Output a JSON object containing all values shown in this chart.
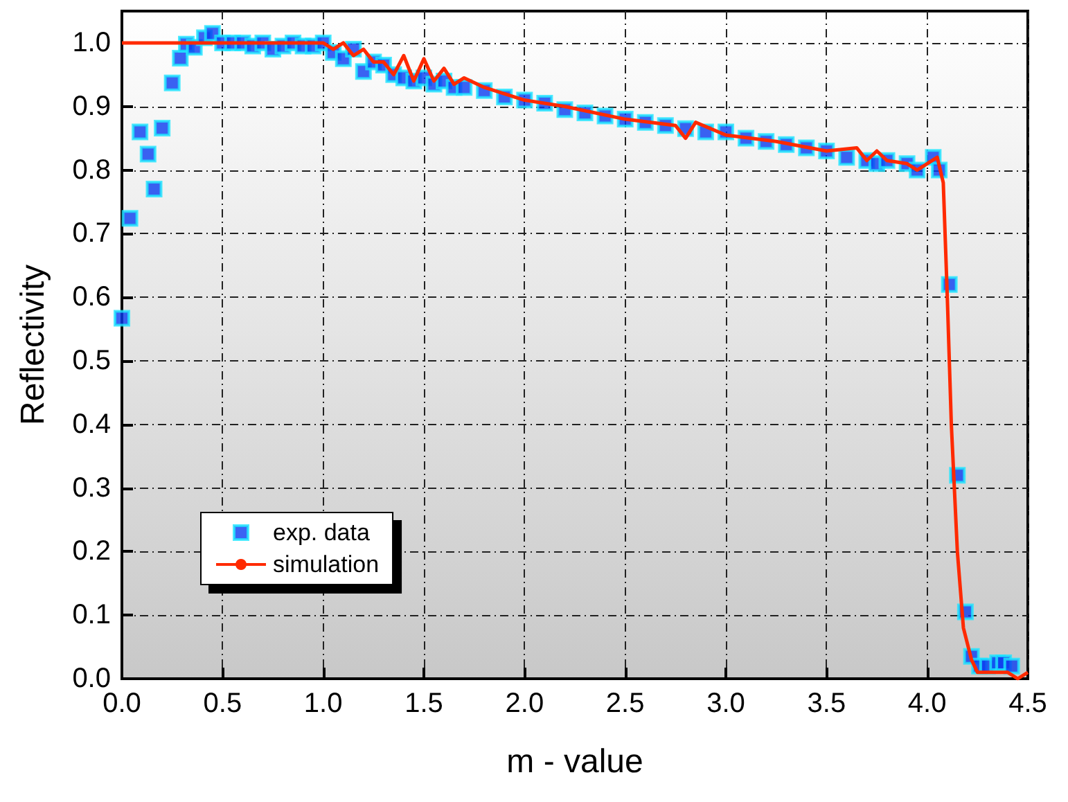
{
  "chart_data": {
    "type": "scatter",
    "xlabel": "m - value",
    "ylabel": "Reflectivity",
    "xlim": [
      0,
      4.5
    ],
    "xticks": [
      {
        "value": 0,
        "label": "0.0"
      },
      0.5,
      {
        "value": 1,
        "label": "1.0"
      },
      1.5,
      {
        "value": 2,
        "label": "2.0"
      },
      2.5,
      {
        "value": 3,
        "label": "3.0"
      },
      3.5,
      {
        "value": 4,
        "label": "4.0"
      },
      4.5
    ],
    "ylim": [
      0,
      1.05
    ],
    "yticks": [
      {
        "value": 0,
        "label": "0.0"
      },
      0.1,
      0.2,
      0.3,
      0.4,
      0.5,
      0.6,
      0.7,
      0.8,
      0.9,
      {
        "value": 1,
        "label": "1.0"
      }
    ],
    "grid": true,
    "legend": "bottom left",
    "series": [
      {
        "name": "exp. data",
        "marker": "square",
        "color": "#0a3cf0",
        "x": [
          0,
          0.04,
          0.09,
          0.13,
          0.16,
          0.2,
          0.25,
          0.29,
          0.32,
          0.36,
          0.41,
          0.45,
          0.5,
          0.55,
          0.6,
          0.65,
          0.7,
          0.75,
          0.8,
          0.85,
          0.9,
          0.95,
          1.0,
          1.05,
          1.1,
          1.15,
          1.2,
          1.25,
          1.3,
          1.35,
          1.4,
          1.45,
          1.5,
          1.55,
          1.6,
          1.65,
          1.7,
          1.8,
          1.9,
          2.0,
          2.1,
          2.2,
          2.3,
          2.4,
          2.5,
          2.6,
          2.7,
          2.8,
          2.9,
          3.0,
          3.1,
          3.2,
          3.3,
          3.4,
          3.5,
          3.6,
          3.7,
          3.75,
          3.8,
          3.9,
          3.95,
          4.03,
          4.06,
          4.11,
          4.15,
          4.19,
          4.22,
          4.26,
          4.3,
          4.35,
          4.38,
          4.42
        ],
        "values": [
          0.567,
          0.724,
          0.86,
          0.825,
          0.77,
          0.866,
          0.937,
          0.976,
          0.998,
          0.993,
          1.008,
          1.015,
          1.0,
          1.0,
          1.0,
          0.995,
          1.0,
          0.99,
          0.995,
          1.0,
          0.995,
          0.995,
          1.0,
          0.985,
          0.975,
          0.99,
          0.955,
          0.97,
          0.965,
          0.95,
          0.945,
          0.94,
          0.945,
          0.935,
          0.94,
          0.93,
          0.93,
          0.925,
          0.915,
          0.91,
          0.905,
          0.895,
          0.89,
          0.885,
          0.88,
          0.875,
          0.87,
          0.865,
          0.86,
          0.86,
          0.85,
          0.845,
          0.84,
          0.835,
          0.83,
          0.82,
          0.815,
          0.81,
          0.815,
          0.81,
          0.8,
          0.82,
          0.8,
          0.62,
          0.32,
          0.105,
          0.035,
          0.02,
          0.02,
          0.025,
          0.025,
          0.02
        ]
      },
      {
        "name": "simulation",
        "type": "line",
        "marker": "none",
        "line_style": "solid",
        "color": "#ff2a00",
        "x": [
          0,
          0.5,
          1.0,
          1.05,
          1.1,
          1.15,
          1.2,
          1.25,
          1.3,
          1.35,
          1.4,
          1.45,
          1.5,
          1.55,
          1.6,
          1.65,
          1.7,
          1.8,
          1.9,
          2.0,
          2.2,
          2.5,
          2.75,
          2.8,
          2.85,
          3.0,
          3.25,
          3.5,
          3.65,
          3.7,
          3.75,
          3.8,
          3.9,
          3.95,
          4.0,
          4.05,
          4.08,
          4.1,
          4.12,
          4.15,
          4.18,
          4.22,
          4.25,
          4.4,
          4.45,
          4.5
        ],
        "values": [
          1.0,
          1.0,
          1.0,
          0.99,
          1.0,
          0.98,
          0.99,
          0.97,
          0.97,
          0.95,
          0.98,
          0.94,
          0.975,
          0.94,
          0.96,
          0.935,
          0.945,
          0.93,
          0.92,
          0.91,
          0.9,
          0.88,
          0.87,
          0.85,
          0.875,
          0.855,
          0.845,
          0.83,
          0.835,
          0.815,
          0.83,
          0.815,
          0.81,
          0.8,
          0.81,
          0.82,
          0.78,
          0.6,
          0.4,
          0.2,
          0.08,
          0.03,
          0.01,
          0.01,
          0.0,
          0.01
        ]
      }
    ]
  }
}
